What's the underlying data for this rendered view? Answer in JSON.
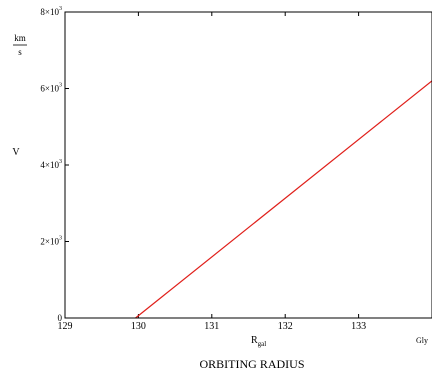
{
  "chart_data": {
    "type": "line",
    "title": "",
    "xlabel_main": "R",
    "xlabel_sub": "gal",
    "x_title": "ORBITING RADIUS",
    "x_unit": "Gly",
    "ylabel": "V",
    "y_unit_num": "km",
    "y_unit_den": "s",
    "xlim": [
      129,
      134
    ],
    "ylim": [
      0,
      8000
    ],
    "x_ticks": [
      129,
      130,
      131,
      132,
      133
    ],
    "x_tick_labels": [
      "129",
      "130",
      "131",
      "132",
      "133"
    ],
    "y_ticks": [
      0,
      2000,
      4000,
      6000,
      8000
    ],
    "y_tick_labels": [
      {
        "mant": "0",
        "exp": ""
      },
      {
        "mant": "2×10",
        "exp": "3"
      },
      {
        "mant": "4×10",
        "exp": "3"
      },
      {
        "mant": "6×10",
        "exp": "3"
      },
      {
        "mant": "8×10",
        "exp": "3"
      }
    ],
    "grid": false,
    "series": [
      {
        "name": "",
        "color": "#e0201b",
        "x": [
          129.96,
          134
        ],
        "y": [
          0,
          6200
        ]
      }
    ]
  }
}
